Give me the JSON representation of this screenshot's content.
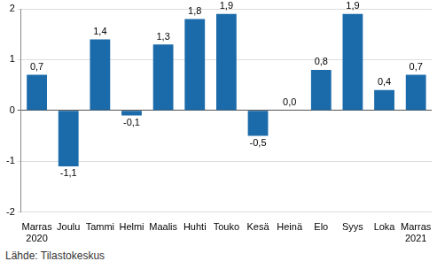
{
  "chart_data": {
    "type": "bar",
    "categories": [
      [
        "Marras",
        "2020"
      ],
      "Joulu",
      "Tammi",
      "Helmi",
      "Maalis",
      "Huhti",
      "Touko",
      "Kesä",
      "Heinä",
      "Elo",
      "Syys",
      "Loka",
      [
        "Marras",
        "2021"
      ]
    ],
    "values": [
      0.7,
      -1.1,
      1.4,
      -0.1,
      1.3,
      1.8,
      1.9,
      -0.5,
      0.0,
      0.8,
      1.9,
      0.4,
      0.7
    ],
    "value_labels": [
      "0,7",
      "-1,1",
      "1,4",
      "-0,1",
      "1,3",
      "1,8",
      "1,9",
      "-0,5",
      "0,0",
      "0,8",
      "1,9",
      "0,4",
      "0,7"
    ],
    "data_labels": true,
    "color": "#1b6bab",
    "ylim": [
      -2,
      2
    ],
    "yticks": [
      -2,
      -1,
      0,
      1,
      2
    ],
    "grid": true,
    "source": "Lähde: Tilastokeskus"
  }
}
